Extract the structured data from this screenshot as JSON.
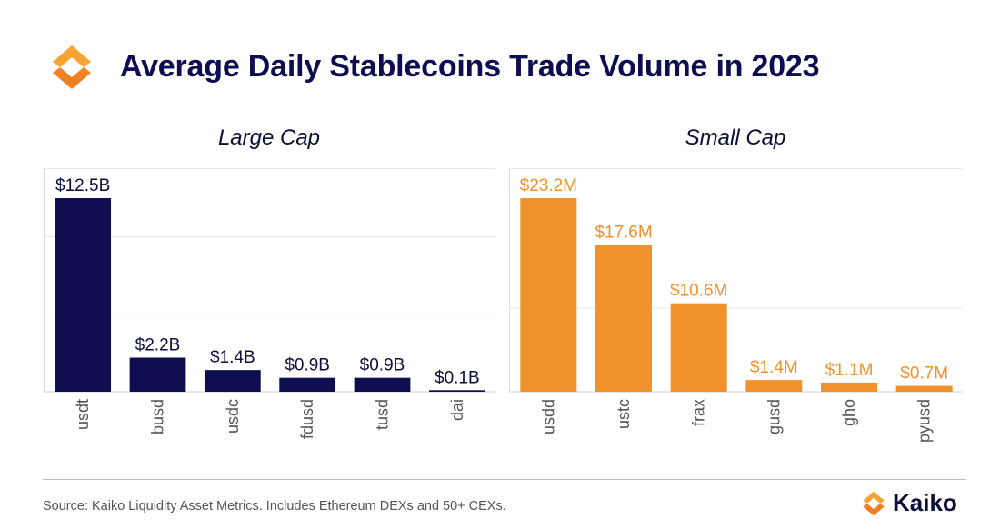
{
  "header": {
    "title": "Average Daily Stablecoins Trade Volume in 2023",
    "logo_icon": "kaiko-logo-icon"
  },
  "chart_data": [
    {
      "type": "bar",
      "title": "Large Cap",
      "categories": [
        "usdt",
        "busd",
        "usdc",
        "fdusd",
        "tusd",
        "dai"
      ],
      "values": [
        12.5,
        2.2,
        1.4,
        0.9,
        0.9,
        0.1
      ],
      "data_labels": [
        "$12.5B",
        "$2.2B",
        "$1.4B",
        "$0.9B",
        "$0.9B",
        "$0.1B"
      ],
      "unit": "B USD",
      "ylim": [
        0,
        12.5
      ],
      "gridlines": [
        5,
        10
      ],
      "grid": true,
      "color": "#0d0d4f",
      "label_color": "#0d0d3a"
    },
    {
      "type": "bar",
      "title": "Small Cap",
      "categories": [
        "usdd",
        "ustc",
        "frax",
        "gusd",
        "gho",
        "pyusd"
      ],
      "values": [
        23.2,
        17.6,
        10.6,
        1.4,
        1.1,
        0.7
      ],
      "data_labels": [
        "$23.2M",
        "$17.6M",
        "$10.6M",
        "$1.4M",
        "$1.1M",
        "$0.7M"
      ],
      "unit": "M USD",
      "ylim": [
        0,
        23.2
      ],
      "gridlines": [
        10,
        20
      ],
      "grid": true,
      "color": "#f0912b",
      "label_color": "#f0912b"
    }
  ],
  "footer": {
    "source": "Source: Kaiko Liquidity Asset Metrics. Includes Ethereum DEXs and 50+ CEXs.",
    "brand": "Kaiko",
    "brand_icon": "kaiko-logo-icon"
  }
}
